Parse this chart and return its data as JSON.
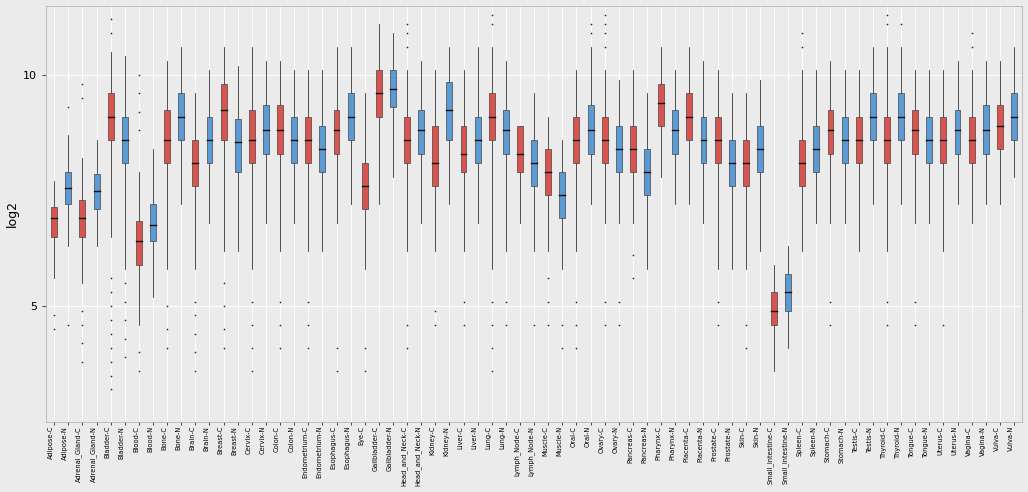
{
  "title": "",
  "ylabel": "log2",
  "background_color": "#ebebeb",
  "plot_background": "#ebebeb",
  "cancer_color": "#d9534f",
  "normal_color": "#5b9bd5",
  "ylim": [
    2.5,
    11.5
  ],
  "yticks": [
    5,
    10
  ],
  "categories": [
    "Adipose-C",
    "Adipose-N",
    "Adrenal_Gland-C",
    "Adrenal_Gland-N",
    "Bladder-C",
    "Bladder-N",
    "Blood-C",
    "Blood-N",
    "Bone-C",
    "Bone-N",
    "Brain-C",
    "Brain-N",
    "Breast-C",
    "Breast-N",
    "Cervix-C",
    "Cervix-N",
    "Colon-C",
    "Colon-N",
    "Endometrium-C",
    "Endometrium-N",
    "Esophagus-C",
    "Esophagus-N",
    "Eye-C",
    "Gallbladder-C",
    "Gallbladder-N",
    "Head_and_Neck-C",
    "Head_and_Neck-N",
    "Kidney-C",
    "Kidney-N",
    "Liver-C",
    "Liver-N",
    "Lung-C",
    "Lung-N",
    "Lymph_Node-C",
    "Lymph_Node-N",
    "Muscle-C",
    "Muscle-N",
    "Oral-C",
    "Oral-N",
    "Ovary-C",
    "Ovary-N",
    "Pancreas-C",
    "Pancreas-N",
    "Pharynx-C",
    "Pharynx-N",
    "Placenta-C",
    "Placenta-N",
    "Prostate-C",
    "Prostate-N",
    "Skin-C",
    "Skin-N",
    "Small_Intestine-C",
    "Small_Intestine-N",
    "Spleen-C",
    "Spleen-N",
    "Stomach-C",
    "Stomach-N",
    "Testis-C",
    "Testis-N",
    "Thyroid-C",
    "Thyroid-N",
    "Tongue-C",
    "Tongue-N",
    "Uterus-C",
    "Uterus-N",
    "Vagina-C",
    "Vagina-N",
    "Vulva-C",
    "Vulva-N"
  ],
  "box_data": {
    "Adipose-C": {
      "q1": 6.5,
      "med": 6.9,
      "q3": 7.15,
      "whislo": 5.6,
      "whishi": 7.7,
      "fliers_lo": [
        4.8,
        4.5
      ],
      "fliers_hi": []
    },
    "Adipose-N": {
      "q1": 7.2,
      "med": 7.55,
      "q3": 7.9,
      "whislo": 6.3,
      "whishi": 8.7,
      "fliers_lo": [
        4.6
      ],
      "fliers_hi": [
        9.3
      ]
    },
    "Adrenal_Gland-C": {
      "q1": 6.5,
      "med": 6.9,
      "q3": 7.3,
      "whislo": 5.5,
      "whishi": 8.2,
      "fliers_lo": [
        3.8,
        4.2,
        4.6,
        4.9
      ],
      "fliers_hi": [
        9.5,
        9.8
      ]
    },
    "Adrenal_Gland-N": {
      "q1": 7.1,
      "med": 7.5,
      "q3": 7.85,
      "whislo": 6.3,
      "whishi": 8.6,
      "fliers_lo": [],
      "fliers_hi": []
    },
    "Bladder-C": {
      "q1": 8.6,
      "med": 9.1,
      "q3": 9.6,
      "whislo": 6.5,
      "whishi": 10.5,
      "fliers_lo": [
        3.2,
        3.5,
        3.8,
        4.1,
        4.4,
        4.7,
        5.0,
        5.3,
        5.6
      ],
      "fliers_hi": [
        10.9,
        11.2
      ]
    },
    "Bladder-N": {
      "q1": 8.1,
      "med": 8.6,
      "q3": 9.1,
      "whislo": 5.8,
      "whishi": 10.4,
      "fliers_lo": [
        3.9,
        4.3,
        4.7,
        5.1,
        5.5
      ],
      "fliers_hi": []
    },
    "Blood-C": {
      "q1": 5.9,
      "med": 6.4,
      "q3": 6.85,
      "whislo": 4.6,
      "whishi": 7.9,
      "fliers_lo": [
        3.6,
        4.0
      ],
      "fliers_hi": [
        8.8,
        9.2,
        9.6,
        10.0
      ]
    },
    "Blood-N": {
      "q1": 6.4,
      "med": 6.75,
      "q3": 7.2,
      "whislo": 5.2,
      "whishi": 8.4,
      "fliers_lo": [],
      "fliers_hi": []
    },
    "Bone-C": {
      "q1": 8.1,
      "med": 8.6,
      "q3": 9.25,
      "whislo": 5.8,
      "whishi": 10.3,
      "fliers_lo": [
        4.1,
        4.5,
        5.0
      ],
      "fliers_hi": []
    },
    "Bone-N": {
      "q1": 8.6,
      "med": 9.1,
      "q3": 9.6,
      "whislo": 7.2,
      "whishi": 10.6,
      "fliers_lo": [],
      "fliers_hi": []
    },
    "Brain-C": {
      "q1": 7.6,
      "med": 8.1,
      "q3": 8.6,
      "whislo": 5.8,
      "whishi": 9.6,
      "fliers_lo": [
        3.6,
        4.0,
        4.4,
        4.8,
        5.1
      ],
      "fliers_hi": []
    },
    "Brain-N": {
      "q1": 8.1,
      "med": 8.6,
      "q3": 9.1,
      "whislo": 6.8,
      "whishi": 10.1,
      "fliers_lo": [],
      "fliers_hi": []
    },
    "Breast-C": {
      "q1": 8.6,
      "med": 9.25,
      "q3": 9.8,
      "whislo": 6.2,
      "whishi": 10.6,
      "fliers_lo": [
        4.1,
        4.5,
        5.0,
        5.5
      ],
      "fliers_hi": []
    },
    "Breast-N": {
      "q1": 7.9,
      "med": 8.55,
      "q3": 9.05,
      "whislo": 6.2,
      "whishi": 10.2,
      "fliers_lo": [],
      "fliers_hi": []
    },
    "Cervix-C": {
      "q1": 8.1,
      "med": 8.6,
      "q3": 9.25,
      "whislo": 5.8,
      "whishi": 10.6,
      "fliers_lo": [
        3.6,
        4.1,
        4.6,
        5.1
      ],
      "fliers_hi": []
    },
    "Cervix-N": {
      "q1": 8.3,
      "med": 8.8,
      "q3": 9.35,
      "whislo": 6.8,
      "whishi": 10.3,
      "fliers_lo": [],
      "fliers_hi": []
    },
    "Colon-C": {
      "q1": 8.3,
      "med": 8.8,
      "q3": 9.35,
      "whislo": 6.2,
      "whishi": 10.3,
      "fliers_lo": [
        4.1,
        4.6,
        5.1
      ],
      "fliers_hi": []
    },
    "Colon-N": {
      "q1": 8.1,
      "med": 8.6,
      "q3": 9.1,
      "whislo": 6.8,
      "whishi": 10.1,
      "fliers_lo": [],
      "fliers_hi": []
    },
    "Endometrium-C": {
      "q1": 8.1,
      "med": 8.6,
      "q3": 9.1,
      "whislo": 6.2,
      "whishi": 10.1,
      "fliers_lo": [
        4.1,
        4.6,
        5.1
      ],
      "fliers_hi": []
    },
    "Endometrium-N": {
      "q1": 7.9,
      "med": 8.4,
      "q3": 8.9,
      "whislo": 6.2,
      "whishi": 10.1,
      "fliers_lo": [],
      "fliers_hi": []
    },
    "Esophagus-C": {
      "q1": 8.3,
      "med": 8.8,
      "q3": 9.25,
      "whislo": 6.8,
      "whishi": 10.6,
      "fliers_lo": [
        3.6,
        4.1
      ],
      "fliers_hi": []
    },
    "Esophagus-N": {
      "q1": 8.6,
      "med": 9.1,
      "q3": 9.6,
      "whislo": 7.2,
      "whishi": 10.6,
      "fliers_lo": [],
      "fliers_hi": []
    },
    "Eye-C": {
      "q1": 7.1,
      "med": 7.6,
      "q3": 8.1,
      "whislo": 5.8,
      "whishi": 9.6,
      "fliers_lo": [
        3.6,
        4.1
      ],
      "fliers_hi": []
    },
    "Gallbladder-C": {
      "q1": 9.1,
      "med": 9.6,
      "q3": 10.1,
      "whislo": 7.2,
      "whishi": 11.1,
      "fliers_lo": [],
      "fliers_hi": []
    },
    "Gallbladder-N": {
      "q1": 9.3,
      "med": 9.7,
      "q3": 10.1,
      "whislo": 7.8,
      "whishi": 10.9,
      "fliers_lo": [],
      "fliers_hi": []
    },
    "Head_and_Neck-C": {
      "q1": 8.1,
      "med": 8.6,
      "q3": 9.1,
      "whislo": 6.2,
      "whishi": 10.1,
      "fliers_lo": [
        4.1,
        4.6
      ],
      "fliers_hi": [
        10.6,
        10.9,
        11.1
      ]
    },
    "Head_and_Neck-N": {
      "q1": 8.3,
      "med": 8.8,
      "q3": 9.25,
      "whislo": 6.8,
      "whishi": 10.3,
      "fliers_lo": [],
      "fliers_hi": []
    },
    "Kidney-C": {
      "q1": 7.6,
      "med": 8.1,
      "q3": 8.9,
      "whislo": 6.2,
      "whishi": 10.1,
      "fliers_lo": [
        4.6,
        4.9
      ],
      "fliers_hi": []
    },
    "Kidney-N": {
      "q1": 8.6,
      "med": 9.25,
      "q3": 9.85,
      "whislo": 7.2,
      "whishi": 10.6,
      "fliers_lo": [],
      "fliers_hi": []
    },
    "Liver-C": {
      "q1": 7.9,
      "med": 8.3,
      "q3": 8.9,
      "whislo": 6.2,
      "whishi": 10.1,
      "fliers_lo": [
        4.6,
        5.1
      ],
      "fliers_hi": []
    },
    "Liver-N": {
      "q1": 8.1,
      "med": 8.6,
      "q3": 9.1,
      "whislo": 6.8,
      "whishi": 10.6,
      "fliers_lo": [],
      "fliers_hi": []
    },
    "Lung-C": {
      "q1": 8.6,
      "med": 9.1,
      "q3": 9.6,
      "whislo": 5.8,
      "whishi": 10.6,
      "fliers_lo": [
        3.6,
        4.1,
        4.6,
        5.1
      ],
      "fliers_hi": [
        11.1,
        11.3
      ]
    },
    "Lung-N": {
      "q1": 8.3,
      "med": 8.8,
      "q3": 9.25,
      "whislo": 6.2,
      "whishi": 10.3,
      "fliers_lo": [
        4.6,
        5.1
      ],
      "fliers_hi": []
    },
    "Lymph_Node-C": {
      "q1": 7.9,
      "med": 8.3,
      "q3": 8.9,
      "whislo": 6.8,
      "whishi": 8.5,
      "fliers_lo": [],
      "fliers_hi": []
    },
    "Lymph_Node-N": {
      "q1": 7.6,
      "med": 8.1,
      "q3": 8.6,
      "whislo": 6.2,
      "whishi": 9.6,
      "fliers_lo": [
        4.6
      ],
      "fliers_hi": []
    },
    "Muscle-C": {
      "q1": 7.4,
      "med": 7.9,
      "q3": 8.4,
      "whislo": 6.2,
      "whishi": 9.1,
      "fliers_lo": [
        4.6,
        5.1,
        5.6
      ],
      "fliers_hi": []
    },
    "Muscle-N": {
      "q1": 6.9,
      "med": 7.4,
      "q3": 7.9,
      "whislo": 5.8,
      "whishi": 8.6,
      "fliers_lo": [
        4.1,
        4.6
      ],
      "fliers_hi": []
    },
    "Oral-C": {
      "q1": 8.1,
      "med": 8.6,
      "q3": 9.1,
      "whislo": 6.2,
      "whishi": 10.1,
      "fliers_lo": [
        4.1,
        4.6,
        5.1
      ],
      "fliers_hi": []
    },
    "Oral-N": {
      "q1": 8.3,
      "med": 8.8,
      "q3": 9.35,
      "whislo": 7.2,
      "whishi": 10.6,
      "fliers_lo": [],
      "fliers_hi": [
        10.9,
        11.1
      ]
    },
    "Ovary-C": {
      "q1": 8.1,
      "med": 8.6,
      "q3": 9.1,
      "whislo": 6.8,
      "whishi": 10.1,
      "fliers_lo": [
        4.6,
        5.1
      ],
      "fliers_hi": [
        10.6,
        10.9,
        11.1,
        11.3
      ]
    },
    "Ovary-N": {
      "q1": 7.9,
      "med": 8.4,
      "q3": 8.9,
      "whislo": 6.8,
      "whishi": 9.9,
      "fliers_lo": [
        4.6,
        5.1
      ],
      "fliers_hi": []
    },
    "Pancreas-C": {
      "q1": 7.9,
      "med": 8.4,
      "q3": 8.9,
      "whislo": 6.8,
      "whishi": 10.1,
      "fliers_lo": [
        5.6,
        6.1
      ],
      "fliers_hi": []
    },
    "Pancreas-N": {
      "q1": 7.4,
      "med": 7.9,
      "q3": 8.4,
      "whislo": 5.8,
      "whishi": 9.6,
      "fliers_lo": [],
      "fliers_hi": []
    },
    "Pharynx-C": {
      "q1": 8.9,
      "med": 9.4,
      "q3": 9.8,
      "whislo": 7.8,
      "whishi": 10.6,
      "fliers_lo": [],
      "fliers_hi": []
    },
    "Pharynx-N": {
      "q1": 8.3,
      "med": 8.8,
      "q3": 9.25,
      "whislo": 7.2,
      "whishi": 10.1,
      "fliers_lo": [],
      "fliers_hi": []
    },
    "Placenta-C": {
      "q1": 8.6,
      "med": 9.1,
      "q3": 9.6,
      "whislo": 7.2,
      "whishi": 10.6,
      "fliers_lo": [],
      "fliers_hi": []
    },
    "Placenta-N": {
      "q1": 8.1,
      "med": 8.6,
      "q3": 9.1,
      "whislo": 6.8,
      "whishi": 10.3,
      "fliers_lo": [],
      "fliers_hi": []
    },
    "Prostate-C": {
      "q1": 8.1,
      "med": 8.6,
      "q3": 9.1,
      "whislo": 5.8,
      "whishi": 10.1,
      "fliers_lo": [
        4.6,
        5.1
      ],
      "fliers_hi": []
    },
    "Prostate-N": {
      "q1": 7.6,
      "med": 8.1,
      "q3": 8.6,
      "whislo": 5.8,
      "whishi": 9.6,
      "fliers_lo": [],
      "fliers_hi": []
    },
    "Skin-C": {
      "q1": 7.6,
      "med": 8.1,
      "q3": 8.6,
      "whislo": 5.8,
      "whishi": 9.6,
      "fliers_lo": [
        4.1,
        4.6
      ],
      "fliers_hi": []
    },
    "Skin-N": {
      "q1": 7.9,
      "med": 8.4,
      "q3": 8.9,
      "whislo": 6.2,
      "whishi": 9.9,
      "fliers_lo": [],
      "fliers_hi": []
    },
    "Small_Intestine-C": {
      "q1": 4.6,
      "med": 4.9,
      "q3": 5.3,
      "whislo": 3.6,
      "whishi": 5.9,
      "fliers_lo": [],
      "fliers_hi": []
    },
    "Small_Intestine-N": {
      "q1": 4.9,
      "med": 5.3,
      "q3": 5.7,
      "whislo": 4.1,
      "whishi": 6.3,
      "fliers_lo": [],
      "fliers_hi": []
    },
    "Spleen-C": {
      "q1": 7.6,
      "med": 8.1,
      "q3": 8.6,
      "whislo": 6.2,
      "whishi": 10.1,
      "fliers_lo": [],
      "fliers_hi": [
        10.6,
        10.9
      ]
    },
    "Spleen-N": {
      "q1": 7.9,
      "med": 8.4,
      "q3": 8.9,
      "whislo": 6.8,
      "whishi": 10.1,
      "fliers_lo": [],
      "fliers_hi": []
    },
    "Stomach-C": {
      "q1": 8.3,
      "med": 8.8,
      "q3": 9.25,
      "whislo": 6.8,
      "whishi": 10.3,
      "fliers_lo": [
        4.6,
        5.1
      ],
      "fliers_hi": []
    },
    "Stomach-N": {
      "q1": 8.1,
      "med": 8.6,
      "q3": 9.1,
      "whislo": 6.8,
      "whishi": 10.1,
      "fliers_lo": [],
      "fliers_hi": []
    },
    "Testis-C": {
      "q1": 8.1,
      "med": 8.6,
      "q3": 9.1,
      "whislo": 6.2,
      "whishi": 10.1,
      "fliers_lo": [],
      "fliers_hi": []
    },
    "Testis-N": {
      "q1": 8.6,
      "med": 9.1,
      "q3": 9.6,
      "whislo": 7.2,
      "whishi": 10.6,
      "fliers_lo": [],
      "fliers_hi": []
    },
    "Thyroid-C": {
      "q1": 8.1,
      "med": 8.6,
      "q3": 9.1,
      "whislo": 6.2,
      "whishi": 10.6,
      "fliers_lo": [
        4.6,
        5.1
      ],
      "fliers_hi": [
        11.1,
        11.3
      ]
    },
    "Thyroid-N": {
      "q1": 8.6,
      "med": 9.1,
      "q3": 9.6,
      "whislo": 7.2,
      "whishi": 10.6,
      "fliers_lo": [],
      "fliers_hi": [
        11.1
      ]
    },
    "Tongue-C": {
      "q1": 8.3,
      "med": 8.8,
      "q3": 9.25,
      "whislo": 6.8,
      "whishi": 10.1,
      "fliers_lo": [
        4.6,
        5.1
      ],
      "fliers_hi": []
    },
    "Tongue-N": {
      "q1": 8.1,
      "med": 8.6,
      "q3": 9.1,
      "whislo": 6.8,
      "whishi": 10.1,
      "fliers_lo": [],
      "fliers_hi": []
    },
    "Uterus-C": {
      "q1": 8.1,
      "med": 8.6,
      "q3": 9.1,
      "whislo": 6.2,
      "whishi": 10.1,
      "fliers_lo": [
        4.6
      ],
      "fliers_hi": []
    },
    "Uterus-N": {
      "q1": 8.3,
      "med": 8.8,
      "q3": 9.25,
      "whislo": 7.2,
      "whishi": 10.3,
      "fliers_lo": [],
      "fliers_hi": []
    },
    "Vagina-C": {
      "q1": 8.1,
      "med": 8.6,
      "q3": 9.1,
      "whislo": 6.8,
      "whishi": 10.1,
      "fliers_lo": [],
      "fliers_hi": [
        10.6,
        10.9
      ]
    },
    "Vagina-N": {
      "q1": 8.3,
      "med": 8.8,
      "q3": 9.35,
      "whislo": 7.2,
      "whishi": 10.3,
      "fliers_lo": [],
      "fliers_hi": []
    },
    "Vulva-C": {
      "q1": 8.4,
      "med": 8.9,
      "q3": 9.35,
      "whislo": 7.2,
      "whishi": 10.3,
      "fliers_lo": [],
      "fliers_hi": []
    },
    "Vulva-N": {
      "q1": 8.6,
      "med": 9.1,
      "q3": 9.6,
      "whislo": 7.8,
      "whishi": 10.6,
      "fliers_lo": [],
      "fliers_hi": []
    }
  }
}
